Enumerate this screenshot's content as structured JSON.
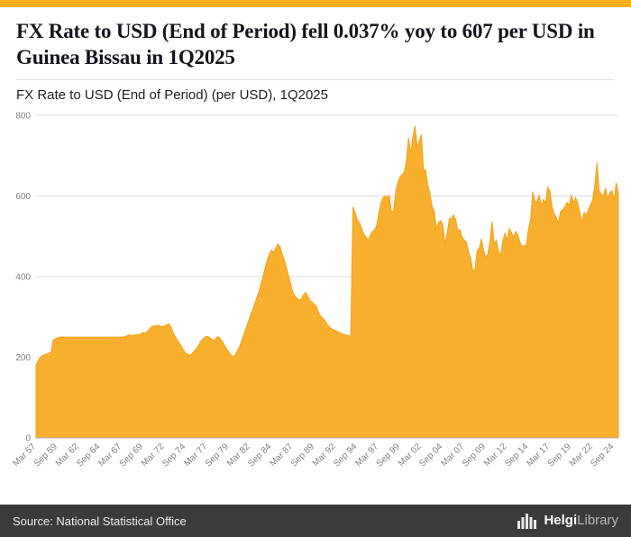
{
  "header": {
    "title": "FX Rate to USD (End of Period) fell 0.037% yoy to 607 per USD in Guinea Bissau in 1Q2025",
    "subtitle": "FX Rate to USD (End of Period) (per USD), 1Q2025"
  },
  "footer": {
    "source": "Source: National Statistical Office",
    "logo_bold": "Helgi",
    "logo_light": "Library"
  },
  "colors": {
    "accent": "#F8B020",
    "area_fill": "#F8AF2E",
    "area_stroke": "#F2A31B",
    "grid": "#dddddd",
    "axis_line": "#aaaaaa",
    "tick_text": "#808080",
    "footer_bg": "#3b3b3b"
  },
  "chart_data": {
    "type": "area",
    "title": "FX Rate to USD (End of Period) (per USD), 1Q2025",
    "xlabel": "",
    "ylabel": "per USD",
    "frequency": "quarterly",
    "x_start": "Mar 1957",
    "x_end": "Mar 2025",
    "ylim": [
      0,
      800
    ],
    "yticks": [
      0,
      200,
      400,
      600,
      800
    ],
    "grid": true,
    "xtick_interval": 10,
    "xtick_labels": [
      "Mar 57",
      "Sep 59",
      "Mar 62",
      "Sep 64",
      "Mar 67",
      "Sep 69",
      "Mar 72",
      "Sep 74",
      "Mar 77",
      "Sep 79",
      "Mar 82",
      "Sep 84",
      "Mar 87",
      "Sep 89",
      "Mar 92",
      "Sep 94",
      "Mar 97",
      "Sep 99",
      "Mar 02",
      "Sep 04",
      "Mar 07",
      "Sep 09",
      "Mar 12",
      "Sep 14",
      "Mar 17",
      "Sep 19",
      "Mar 22",
      "Sep 24"
    ],
    "values": [
      180,
      192,
      200,
      204,
      206,
      208,
      210,
      212,
      242,
      246,
      248,
      250,
      250,
      250,
      250,
      250,
      250,
      250,
      250,
      250,
      250,
      250,
      250,
      250,
      250,
      250,
      250,
      250,
      250,
      250,
      250,
      250,
      250,
      250,
      250,
      250,
      250,
      250,
      250,
      250,
      250,
      250,
      252,
      255,
      255,
      254,
      255,
      256,
      255,
      258,
      262,
      260,
      264,
      270,
      276,
      278,
      278,
      280,
      277,
      276,
      277,
      281,
      283,
      276,
      262,
      252,
      242,
      235,
      226,
      216,
      210,
      207,
      205,
      210,
      216,
      222,
      231,
      240,
      246,
      250,
      252,
      249,
      245,
      241,
      246,
      251,
      247,
      239,
      230,
      221,
      213,
      206,
      201,
      206,
      216,
      226,
      241,
      256,
      271,
      286,
      301,
      316,
      331,
      346,
      361,
      381,
      401,
      421,
      441,
      456,
      466,
      459,
      471,
      481,
      474,
      456,
      441,
      421,
      401,
      381,
      361,
      351,
      346,
      341,
      346,
      356,
      361,
      351,
      341,
      336,
      331,
      326,
      311,
      301,
      296,
      291,
      281,
      276,
      271,
      268,
      266,
      263,
      261,
      258,
      256,
      255,
      254,
      252,
      571,
      561,
      541,
      535,
      521,
      506,
      499,
      490,
      501,
      511,
      516,
      524,
      556,
      581,
      596,
      600,
      597,
      601,
      561,
      562,
      611,
      633,
      648,
      653,
      659,
      688,
      744,
      705,
      745,
      774,
      721,
      736,
      752,
      662,
      665,
      626,
      607,
      573,
      563,
      519,
      534,
      539,
      528,
      481,
      506,
      543,
      545,
      553,
      541,
      513,
      517,
      498,
      491,
      485,
      462,
      446,
      415,
      417,
      466,
      470,
      494,
      466,
      449,
      455,
      486,
      536,
      481,
      490,
      463,
      453,
      489,
      507,
      491,
      519,
      510,
      497,
      512,
      504,
      485,
      476,
      476,
      480,
      519,
      541,
      611,
      587,
      586,
      602,
      576,
      591,
      584,
      622,
      613,
      574,
      556,
      547,
      533,
      562,
      566,
      573,
      584,
      577,
      601,
      584,
      596,
      583,
      559,
      535,
      559,
      553,
      566,
      579,
      590,
      627,
      683,
      614,
      604,
      601,
      620,
      594,
      608,
      613,
      589,
      633,
      607
    ]
  }
}
